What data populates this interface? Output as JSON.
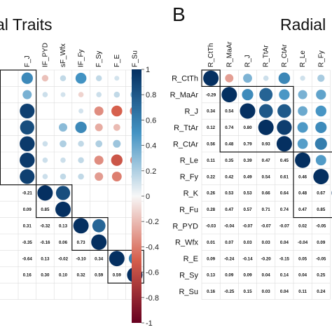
{
  "chart_data": [
    {
      "type": "heatmap",
      "subtype": "correlation-matrix",
      "panel": "",
      "title": "al Traits",
      "columns": [
        "F_J",
        "IF_PYD",
        "sF_Wfx",
        "IF_Fy",
        "F_Sy",
        "F_E",
        "F_Su"
      ],
      "lower_values": [
        [
          "-0.21",
          "",
          "",
          "",
          "",
          "",
          ""
        ],
        [
          "0.09",
          "0.85",
          "",
          "",
          "",
          "",
          ""
        ],
        [
          "0.31",
          "-0.32",
          "0.13",
          "",
          "",
          "",
          ""
        ],
        [
          "-0.35",
          "-0.16",
          "0.06",
          "0.73",
          "",
          "",
          ""
        ],
        [
          "-0.64",
          "0.13",
          "-0.02",
          "-0.10",
          "0.34",
          "",
          ""
        ],
        [
          "0.16",
          "0.30",
          "0.10",
          "0.32",
          "0.59",
          "0.59",
          ""
        ]
      ],
      "circles": [
        {
          "row": 0,
          "col": 0,
          "r": 0.55
        },
        {
          "row": 0,
          "col": 1,
          "r": -0.18
        },
        {
          "row": 0,
          "col": 2,
          "r": 0.15
        },
        {
          "row": 0,
          "col": 3,
          "r": 0.5
        },
        {
          "row": 0,
          "col": 4,
          "r": 0.15
        },
        {
          "row": 0,
          "col": 5,
          "r": 0.1
        },
        {
          "row": 0,
          "col": 6,
          "r": 0.2
        },
        {
          "row": 1,
          "col": 0,
          "r": 0.35
        },
        {
          "row": 1,
          "col": 1,
          "r": 0.12
        },
        {
          "row": 1,
          "col": 2,
          "r": 0.1
        },
        {
          "row": 1,
          "col": 3,
          "r": -0.12
        },
        {
          "row": 1,
          "col": 4,
          "r": 0.12
        },
        {
          "row": 1,
          "col": 5,
          "r": 0.15
        },
        {
          "row": 1,
          "col": 6,
          "r": 0.3
        },
        {
          "row": 2,
          "col": 0,
          "r": 0.92
        },
        {
          "row": 2,
          "col": 3,
          "r": 0.1
        },
        {
          "row": 2,
          "col": 4,
          "r": -0.35
        },
        {
          "row": 2,
          "col": 5,
          "r": -0.5
        },
        {
          "row": 2,
          "col": 6,
          "r": -0.4
        },
        {
          "row": 3,
          "col": 0,
          "r": 0.85
        },
        {
          "row": 3,
          "col": 2,
          "r": 0.3
        },
        {
          "row": 3,
          "col": 3,
          "r": 0.55
        },
        {
          "row": 3,
          "col": 4,
          "r": -0.25
        },
        {
          "row": 3,
          "col": 5,
          "r": -0.2
        },
        {
          "row": 3,
          "col": 6,
          "r": -0.2
        },
        {
          "row": 4,
          "col": 0,
          "r": 0.95
        },
        {
          "row": 4,
          "col": 1,
          "r": 0.12
        },
        {
          "row": 4,
          "col": 2,
          "r": 0.2
        },
        {
          "row": 4,
          "col": 3,
          "r": 0.15
        },
        {
          "row": 4,
          "col": 4,
          "r": 0.2
        },
        {
          "row": 4,
          "col": 5,
          "r": 0.25
        },
        {
          "row": 4,
          "col": 6,
          "r": 0.15
        },
        {
          "row": 5,
          "col": 0,
          "r": 0.95
        },
        {
          "row": 5,
          "col": 1,
          "r": 0.12
        },
        {
          "row": 5,
          "col": 2,
          "r": 0.12
        },
        {
          "row": 5,
          "col": 3,
          "r": 0.15
        },
        {
          "row": 5,
          "col": 4,
          "r": -0.35
        },
        {
          "row": 5,
          "col": 5,
          "r": -0.55
        },
        {
          "row": 5,
          "col": 6,
          "r": -0.35
        },
        {
          "row": 6,
          "col": 0,
          "r": 0.92
        },
        {
          "row": 6,
          "col": 1,
          "r": 0.12
        },
        {
          "row": 6,
          "col": 2,
          "r": 0.15
        },
        {
          "row": 6,
          "col": 3,
          "r": 0.15
        },
        {
          "row": 6,
          "col": 4,
          "r": -0.3
        },
        {
          "row": 6,
          "col": 5,
          "r": -0.4
        },
        {
          "row": 6,
          "col": 6,
          "r": 0.2
        },
        {
          "row": 7,
          "col": 1,
          "r": 1.0
        },
        {
          "row": 7,
          "col": 2,
          "r": 0.85
        },
        {
          "row": 8,
          "col": 2,
          "r": 1.0
        },
        {
          "row": 9,
          "col": 3,
          "r": 1.0
        },
        {
          "row": 9,
          "col": 4,
          "r": 0.73
        },
        {
          "row": 10,
          "col": 4,
          "r": 1.0
        },
        {
          "row": 11,
          "col": 5,
          "r": 1.0
        },
        {
          "row": 11,
          "col": 6,
          "r": 0.6
        },
        {
          "row": 12,
          "col": 6,
          "r": 1.0
        }
      ],
      "boxes": [
        {
          "r0": 0,
          "r1": 6,
          "c0": -1,
          "c1": 0
        },
        {
          "r0": 7,
          "r1": 8,
          "c0": 1,
          "c1": 2
        },
        {
          "r0": 9,
          "r1": 10,
          "c0": 3,
          "c1": 4
        },
        {
          "r0": 11,
          "r1": 12,
          "c0": 5,
          "c1": 6
        }
      ]
    },
    {
      "type": "heatmap",
      "subtype": "correlation-matrix",
      "panel": "B",
      "title": "Radial",
      "columns": [
        "R_CtTh",
        "R_MaAr",
        "R_J",
        "R_TtAr",
        "R_CtAr",
        "R_Le",
        "R_Fy"
      ],
      "rows": [
        "R_CtTh",
        "R_MaAr",
        "R_J",
        "R_TtAr",
        "R_CtAr",
        "R_Le",
        "R_Fy",
        "R_K",
        "R_Fu",
        "R_PYD",
        "R_Wfx",
        "R_E",
        "R_Sy",
        "R_Su"
      ],
      "lower_values": [
        [
          "",
          "",
          "",
          "",
          "",
          "",
          ""
        ],
        [
          "-0.29",
          "",
          "",
          "",
          "",
          "",
          ""
        ],
        [
          "0.34",
          "0.54",
          "",
          "",
          "",
          "",
          ""
        ],
        [
          "0.12",
          "0.74",
          "0.80",
          "",
          "",
          "",
          ""
        ],
        [
          "0.56",
          "0.48",
          "0.79",
          "0.93",
          "",
          "",
          ""
        ],
        [
          "0.11",
          "0.35",
          "0.39",
          "0.47",
          "0.45",
          "",
          ""
        ],
        [
          "0.22",
          "0.42",
          "0.49",
          "0.54",
          "0.61",
          "0.46",
          ""
        ],
        [
          "0.26",
          "0.53",
          "0.53",
          "0.66",
          "0.64",
          "0.48",
          "0.67"
        ],
        [
          "0.28",
          "0.47",
          "0.57",
          "0.71",
          "0.74",
          "0.47",
          "0.85"
        ],
        [
          "-0.03",
          "-0.04",
          "-0.07",
          "-0.07",
          "-0.07",
          "0.02",
          "-0.05"
        ],
        [
          "0.01",
          "0.07",
          "0.03",
          "0.03",
          "0.04",
          "-0.04",
          "0.09"
        ],
        [
          "0.09",
          "-0.24",
          "-0.14",
          "-0.20",
          "-0.15",
          "0.05",
          "-0.05"
        ],
        [
          "0.13",
          "0.09",
          "0.09",
          "0.04",
          "0.14",
          "0.04",
          "0.25"
        ],
        [
          "0.16",
          "-0.25",
          "0.15",
          "0.03",
          "0.04",
          "0.11",
          "0.24"
        ]
      ],
      "circles": [
        {
          "row": 0,
          "col": 0,
          "r": 1.0
        },
        {
          "row": 0,
          "col": 1,
          "r": -0.29
        },
        {
          "row": 0,
          "col": 2,
          "r": 0.34
        },
        {
          "row": 0,
          "col": 3,
          "r": 0.12
        },
        {
          "row": 0,
          "col": 4,
          "r": 0.56
        },
        {
          "row": 0,
          "col": 5,
          "r": 0.11
        },
        {
          "row": 0,
          "col": 6,
          "r": 0.22
        },
        {
          "row": 1,
          "col": 1,
          "r": 1.0
        },
        {
          "row": 1,
          "col": 2,
          "r": 0.54
        },
        {
          "row": 1,
          "col": 3,
          "r": 0.74
        },
        {
          "row": 1,
          "col": 4,
          "r": 0.48
        },
        {
          "row": 1,
          "col": 5,
          "r": 0.35
        },
        {
          "row": 1,
          "col": 6,
          "r": 0.42
        },
        {
          "row": 2,
          "col": 2,
          "r": 1.0
        },
        {
          "row": 2,
          "col": 3,
          "r": 0.8
        },
        {
          "row": 2,
          "col": 4,
          "r": 0.79
        },
        {
          "row": 2,
          "col": 5,
          "r": 0.39
        },
        {
          "row": 2,
          "col": 6,
          "r": 0.49
        },
        {
          "row": 3,
          "col": 3,
          "r": 1.0
        },
        {
          "row": 3,
          "col": 4,
          "r": 0.93
        },
        {
          "row": 3,
          "col": 5,
          "r": 0.47
        },
        {
          "row": 3,
          "col": 6,
          "r": 0.54
        },
        {
          "row": 4,
          "col": 4,
          "r": 1.0
        },
        {
          "row": 4,
          "col": 5,
          "r": 0.45
        },
        {
          "row": 4,
          "col": 6,
          "r": 0.61
        },
        {
          "row": 5,
          "col": 5,
          "r": 1.0
        },
        {
          "row": 5,
          "col": 6,
          "r": 0.46
        },
        {
          "row": 6,
          "col": 6,
          "r": 1.0
        },
        {
          "row": 7,
          "col": 7,
          "r": 1.0
        }
      ],
      "boxes": [
        {
          "r0": 0,
          "r1": 0,
          "c0": 0,
          "c1": 0
        },
        {
          "r0": 1,
          "r1": 4,
          "c0": 1,
          "c1": 4
        },
        {
          "r0": 5,
          "r1": 8,
          "c0": 5,
          "c1": 7
        }
      ]
    },
    {
      "type": "colorbar",
      "ticks": [
        "1",
        "0.8",
        "0.6",
        "0.4",
        "0.2",
        "0",
        "-0.2",
        "-0.4",
        "-0.6",
        "-0.8",
        "-1"
      ],
      "range": [
        -1,
        1
      ],
      "colors": {
        "negative": "#67001f",
        "mid_negative": "#d6604d",
        "neutral": "#f7f7f7",
        "mid_positive": "#4393c3",
        "positive": "#053061"
      }
    }
  ]
}
